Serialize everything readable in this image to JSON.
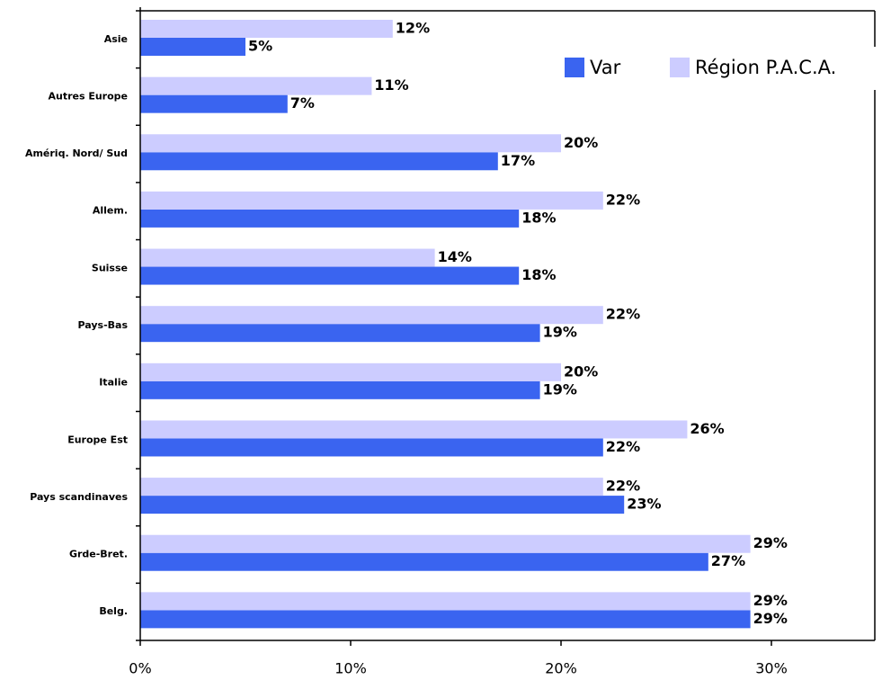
{
  "chart_data": {
    "type": "hbar",
    "categories": [
      "Asie",
      "Autres Europe",
      "Amériq. Nord/ Sud",
      "Allem.",
      "Suisse",
      "Pays-Bas",
      "Italie",
      "Europe Est",
      "Pays scandinaves",
      "Grde-Bret.",
      "Belg."
    ],
    "series": [
      {
        "name": "Var",
        "color": "#3a64f0",
        "values": [
          5,
          7,
          17,
          18,
          18,
          19,
          19,
          22,
          23,
          27,
          29
        ],
        "value_labels": [
          "5%",
          "7%",
          "17%",
          "18%",
          "18%",
          "19%",
          "19%",
          "22%",
          "23%",
          "27%",
          "29%"
        ]
      },
      {
        "name": "Région P.A.C.A.",
        "color": "#ccccff",
        "values": [
          12,
          11,
          20,
          22,
          14,
          22,
          20,
          26,
          22,
          29,
          29
        ],
        "value_labels": [
          "12%",
          "11%",
          "20%",
          "22%",
          "14%",
          "22%",
          "20%",
          "26%",
          "22%",
          "29%",
          "29%"
        ]
      }
    ],
    "xlim": [
      0,
      35
    ],
    "xticks": [
      {
        "value": 0,
        "label": "0%"
      },
      {
        "value": 10,
        "label": "10%"
      },
      {
        "value": 20,
        "label": "20%"
      },
      {
        "value": 30,
        "label": "30%"
      }
    ],
    "legend": "top-right"
  }
}
